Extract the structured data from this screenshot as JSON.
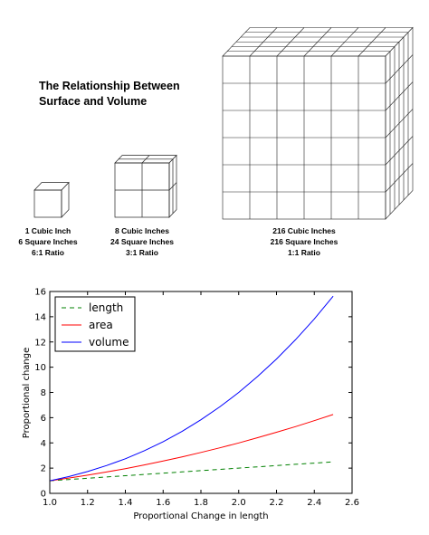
{
  "illustration": {
    "heading_lines": [
      "The Relationship Between",
      "Surface and Volume"
    ],
    "cubes": [
      {
        "grid": 1,
        "lines": [
          "1 Cubic Inch",
          "6 Square Inches",
          "6:1 Ratio"
        ]
      },
      {
        "grid": 2,
        "lines": [
          "8 Cubic Inches",
          "24 Square Inches",
          "3:1 Ratio"
        ]
      },
      {
        "grid": 6,
        "lines": [
          "216 Cubic Inches",
          "216 Square Inches",
          "1:1 Ratio"
        ]
      }
    ]
  },
  "chart_data": {
    "type": "line",
    "title": "",
    "xlabel": "Proportional Change in length",
    "ylabel": "Proportional change",
    "xlim": [
      1.0,
      2.6
    ],
    "ylim": [
      0,
      16
    ],
    "xticks": [
      "1.0",
      "1.2",
      "1.4",
      "1.6",
      "1.8",
      "2.0",
      "2.2",
      "2.4",
      "2.6"
    ],
    "yticks": [
      "0",
      "2",
      "4",
      "6",
      "8",
      "10",
      "12",
      "14",
      "16"
    ],
    "grid": false,
    "legend_position": "top-left",
    "x": [
      1.0,
      1.1,
      1.2,
      1.3,
      1.4,
      1.5,
      1.6,
      1.7,
      1.8,
      1.9,
      2.0,
      2.1,
      2.2,
      2.3,
      2.4,
      2.5
    ],
    "series": [
      {
        "name": "length",
        "color": "#008000",
        "dash": true,
        "values": [
          1.0,
          1.1,
          1.2,
          1.3,
          1.4,
          1.5,
          1.6,
          1.7,
          1.8,
          1.9,
          2.0,
          2.1,
          2.2,
          2.3,
          2.4,
          2.5
        ]
      },
      {
        "name": "area",
        "color": "#ff0000",
        "dash": false,
        "values": [
          1.0,
          1.21,
          1.44,
          1.69,
          1.96,
          2.25,
          2.56,
          2.89,
          3.24,
          3.61,
          4.0,
          4.41,
          4.84,
          5.29,
          5.76,
          6.25
        ]
      },
      {
        "name": "volume",
        "color": "#0000ff",
        "dash": false,
        "values": [
          1.0,
          1.33,
          1.73,
          2.2,
          2.74,
          3.38,
          4.1,
          4.91,
          5.83,
          6.86,
          8.0,
          9.26,
          10.65,
          12.17,
          13.82,
          15.63
        ]
      }
    ]
  }
}
